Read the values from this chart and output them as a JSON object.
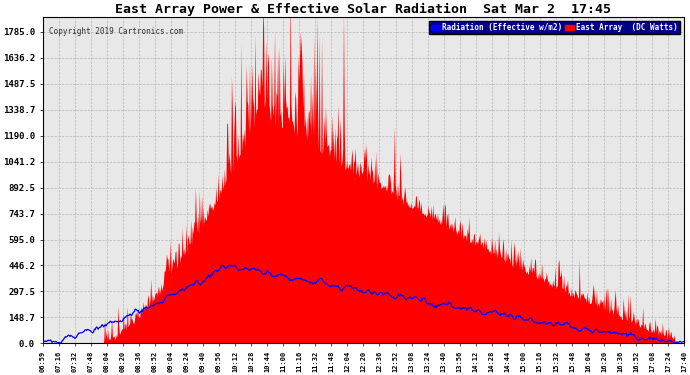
{
  "title": "East Array Power & Effective Solar Radiation  Sat Mar 2  17:45",
  "copyright": "Copyright 2019 Cartronics.com",
  "legend_radiation": "Radiation (Effective w/m2)",
  "legend_east": "East Array  (DC Watts)",
  "yticks": [
    0.0,
    148.7,
    297.5,
    446.2,
    595.0,
    743.7,
    892.5,
    1041.2,
    1190.0,
    1338.7,
    1487.5,
    1636.2,
    1785.0
  ],
  "ymax": 1870,
  "background_color": "#ffffff",
  "plot_bg_color": "#e8e8e8",
  "grid_color": "#aaaaaa",
  "red_color": "#ff0000",
  "blue_color": "#0000ff",
  "title_color": "#000000",
  "xtick_labels": [
    "06:59",
    "07:16",
    "07:32",
    "07:48",
    "08:04",
    "08:20",
    "08:36",
    "08:52",
    "09:04",
    "09:24",
    "09:40",
    "09:56",
    "10:12",
    "10:28",
    "10:44",
    "11:00",
    "11:16",
    "11:32",
    "11:48",
    "12:04",
    "12:20",
    "12:36",
    "12:52",
    "13:08",
    "13:24",
    "13:40",
    "13:56",
    "14:12",
    "14:28",
    "14:44",
    "15:00",
    "15:16",
    "15:32",
    "15:48",
    "16:04",
    "16:20",
    "16:36",
    "16:52",
    "17:08",
    "17:24",
    "17:40"
  ]
}
